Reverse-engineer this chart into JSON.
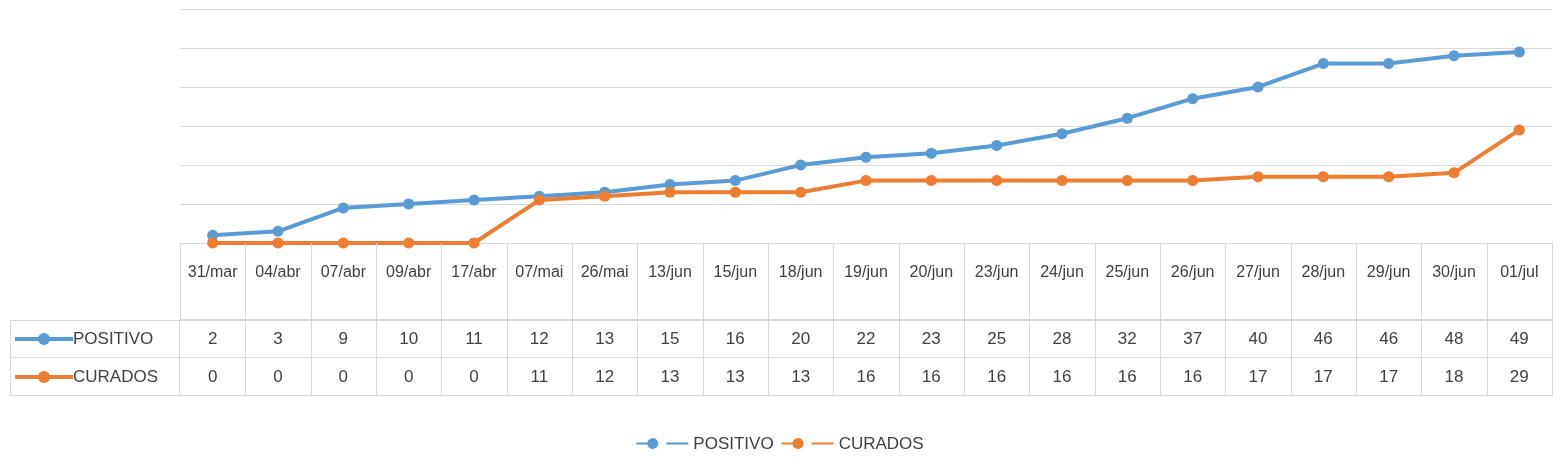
{
  "chart_data": {
    "type": "line",
    "categories": [
      "31/mar",
      "04/abr",
      "07/abr",
      "09/abr",
      "17/abr",
      "07/mai",
      "26/mai",
      "13/jun",
      "15/jun",
      "18/jun",
      "19/jun",
      "20/jun",
      "23/jun",
      "24/jun",
      "25/jun",
      "26/jun",
      "27/jun",
      "28/jun",
      "29/jun",
      "30/jun",
      "01/jul"
    ],
    "series": [
      {
        "name": "POSITIVO",
        "color": "#5b9bd5",
        "values": [
          2,
          3,
          9,
          10,
          11,
          12,
          13,
          15,
          16,
          20,
          22,
          23,
          25,
          28,
          32,
          37,
          40,
          46,
          46,
          48,
          49
        ]
      },
      {
        "name": "CURADOS",
        "color": "#ed7d31",
        "values": [
          0,
          0,
          0,
          0,
          0,
          11,
          12,
          13,
          13,
          13,
          16,
          16,
          16,
          16,
          16,
          16,
          17,
          17,
          17,
          18,
          29
        ]
      }
    ],
    "ylim": [
      0,
      60
    ],
    "yticks": [
      {
        "value": 0,
        "label": null
      },
      {
        "value": 10,
        "label": null
      },
      {
        "value": 20,
        "label": null
      },
      {
        "value": 30,
        "label": null
      },
      {
        "value": 40,
        "label": null
      },
      {
        "value": 50,
        "label": null
      },
      {
        "value": 60,
        "label": null
      }
    ],
    "tick_labels": "x",
    "grid": "y",
    "legend": "bottom",
    "marker": "circle",
    "line_style": "solid",
    "data_labels": true
  }
}
